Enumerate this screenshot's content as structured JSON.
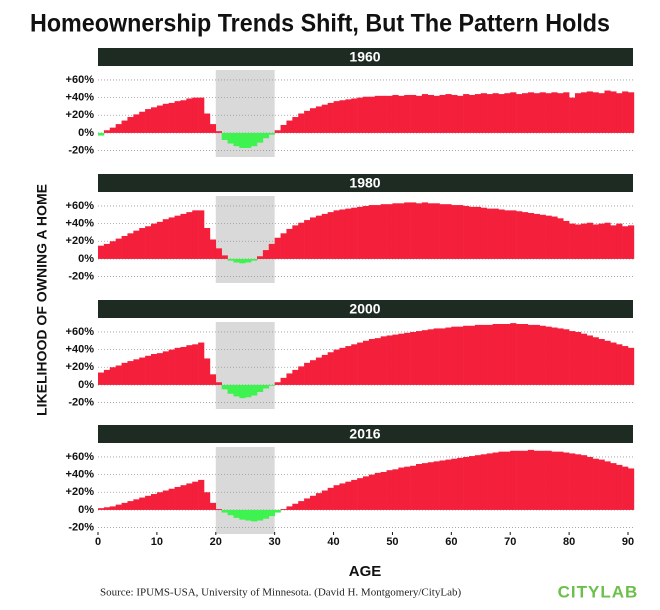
{
  "title": "Homeownership Trends Shift, But The Pattern Holds",
  "y_axis_label": "LIKELIHOOD OF OWNING A HOME",
  "x_axis_label": "AGE",
  "source": "Source: IPUMS-USA, University of Minnesota. (David H. Montgomery/CityLab)",
  "logo": "CITYLAB",
  "chart_data": [
    {
      "type": "bar",
      "title": "1960",
      "x": [
        0,
        1,
        2,
        3,
        4,
        5,
        6,
        7,
        8,
        9,
        10,
        11,
        12,
        13,
        14,
        15,
        16,
        17,
        18,
        19,
        20,
        21,
        22,
        23,
        24,
        25,
        26,
        27,
        28,
        29,
        30,
        31,
        32,
        33,
        34,
        35,
        36,
        37,
        38,
        39,
        40,
        41,
        42,
        43,
        44,
        45,
        46,
        47,
        48,
        49,
        50,
        51,
        52,
        53,
        54,
        55,
        56,
        57,
        58,
        59,
        60,
        61,
        62,
        63,
        64,
        65,
        66,
        67,
        68,
        69,
        70,
        71,
        72,
        73,
        74,
        75,
        76,
        77,
        78,
        79,
        80,
        81,
        82,
        83,
        84,
        85,
        86,
        87,
        88,
        89,
        90
      ],
      "values": [
        -3,
        3,
        6,
        10,
        14,
        18,
        21,
        24,
        27,
        29,
        31,
        33,
        34,
        36,
        37,
        39,
        40,
        40,
        22,
        10,
        2,
        -8,
        -12,
        -15,
        -17,
        -17,
        -15,
        -11,
        -6,
        -2,
        3,
        9,
        14,
        18,
        22,
        25,
        28,
        30,
        32,
        34,
        36,
        37,
        38,
        39,
        40,
        41,
        41,
        42,
        42,
        42,
        43,
        42,
        43,
        43,
        42,
        44,
        43,
        42,
        43,
        44,
        43,
        42,
        44,
        43,
        44,
        45,
        44,
        45,
        44,
        45,
        46,
        44,
        45,
        46,
        45,
        46,
        45,
        46,
        45,
        46,
        40,
        45,
        46,
        47,
        46,
        45,
        48,
        47,
        45,
        47,
        46
      ],
      "xlim": [
        0,
        90
      ],
      "ylim": [
        -25,
        69
      ],
      "yticks": [
        {
          "value": 60,
          "label": "+60%"
        },
        {
          "value": 40,
          "label": "+40%"
        },
        {
          "value": 20,
          "label": "+20%"
        },
        {
          "value": 0,
          "label": "0%"
        },
        {
          "value": -20,
          "label": "-20%"
        }
      ],
      "highlight": [
        20,
        30
      ],
      "grid": true,
      "colors": {
        "positive": "#f41f3b",
        "negative": "#3ef24f",
        "highlight": "#d9d9d9"
      }
    },
    {
      "type": "bar",
      "title": "1980",
      "x": [
        0,
        1,
        2,
        3,
        4,
        5,
        6,
        7,
        8,
        9,
        10,
        11,
        12,
        13,
        14,
        15,
        16,
        17,
        18,
        19,
        20,
        21,
        22,
        23,
        24,
        25,
        26,
        27,
        28,
        29,
        30,
        31,
        32,
        33,
        34,
        35,
        36,
        37,
        38,
        39,
        40,
        41,
        42,
        43,
        44,
        45,
        46,
        47,
        48,
        49,
        50,
        51,
        52,
        53,
        54,
        55,
        56,
        57,
        58,
        59,
        60,
        61,
        62,
        63,
        64,
        65,
        66,
        67,
        68,
        69,
        70,
        71,
        72,
        73,
        74,
        75,
        76,
        77,
        78,
        79,
        80,
        81,
        82,
        83,
        84,
        85,
        86,
        87,
        88,
        89,
        90
      ],
      "values": [
        15,
        17,
        20,
        23,
        26,
        29,
        32,
        35,
        37,
        40,
        42,
        45,
        47,
        49,
        51,
        53,
        55,
        55,
        35,
        22,
        12,
        4,
        -2,
        -4,
        -5,
        -4,
        -2,
        3,
        10,
        17,
        24,
        29,
        34,
        38,
        41,
        44,
        47,
        49,
        51,
        53,
        55,
        56,
        57,
        58,
        59,
        60,
        61,
        61,
        62,
        62,
        63,
        63,
        64,
        64,
        63,
        64,
        63,
        63,
        62,
        62,
        61,
        61,
        60,
        59,
        59,
        58,
        57,
        57,
        56,
        55,
        55,
        54,
        53,
        52,
        51,
        50,
        49,
        48,
        46,
        43,
        40,
        39,
        40,
        41,
        39,
        40,
        41,
        38,
        40,
        37,
        38
      ],
      "xlim": [
        0,
        90
      ],
      "ylim": [
        -25,
        69
      ],
      "yticks": [
        {
          "value": 60,
          "label": "+60%"
        },
        {
          "value": 40,
          "label": "+40%"
        },
        {
          "value": 20,
          "label": "+20%"
        },
        {
          "value": 0,
          "label": "0%"
        },
        {
          "value": -20,
          "label": "-20%"
        }
      ],
      "highlight": [
        20,
        30
      ],
      "grid": true,
      "colors": {
        "positive": "#f41f3b",
        "negative": "#3ef24f",
        "highlight": "#d9d9d9"
      }
    },
    {
      "type": "bar",
      "title": "2000",
      "x": [
        0,
        1,
        2,
        3,
        4,
        5,
        6,
        7,
        8,
        9,
        10,
        11,
        12,
        13,
        14,
        15,
        16,
        17,
        18,
        19,
        20,
        21,
        22,
        23,
        24,
        25,
        26,
        27,
        28,
        29,
        30,
        31,
        32,
        33,
        34,
        35,
        36,
        37,
        38,
        39,
        40,
        41,
        42,
        43,
        44,
        45,
        46,
        47,
        48,
        49,
        50,
        51,
        52,
        53,
        54,
        55,
        56,
        57,
        58,
        59,
        60,
        61,
        62,
        63,
        64,
        65,
        66,
        67,
        68,
        69,
        70,
        71,
        72,
        73,
        74,
        75,
        76,
        77,
        78,
        79,
        80,
        81,
        82,
        83,
        84,
        85,
        86,
        87,
        88,
        89,
        90
      ],
      "values": [
        14,
        17,
        20,
        22,
        25,
        27,
        29,
        31,
        33,
        35,
        36,
        38,
        40,
        42,
        43,
        45,
        46,
        48,
        30,
        12,
        3,
        -5,
        -10,
        -13,
        -15,
        -14,
        -12,
        -8,
        -4,
        -1,
        3,
        8,
        13,
        17,
        21,
        25,
        28,
        31,
        34,
        37,
        40,
        42,
        44,
        46,
        48,
        50,
        52,
        53,
        55,
        56,
        57,
        58,
        59,
        60,
        61,
        62,
        63,
        64,
        64,
        65,
        66,
        66,
        67,
        67,
        68,
        68,
        68,
        69,
        69,
        69,
        70,
        69,
        69,
        68,
        68,
        67,
        66,
        65,
        64,
        63,
        61,
        60,
        58,
        56,
        54,
        52,
        50,
        48,
        46,
        44,
        42
      ],
      "xlim": [
        0,
        90
      ],
      "ylim": [
        -25,
        69
      ],
      "yticks": [
        {
          "value": 60,
          "label": "+60%"
        },
        {
          "value": 40,
          "label": "+40%"
        },
        {
          "value": 20,
          "label": "+20%"
        },
        {
          "value": 0,
          "label": "0%"
        },
        {
          "value": -20,
          "label": "-20%"
        }
      ],
      "highlight": [
        20,
        30
      ],
      "grid": true,
      "colors": {
        "positive": "#f41f3b",
        "negative": "#3ef24f",
        "highlight": "#d9d9d9"
      }
    },
    {
      "type": "bar",
      "title": "2016",
      "x": [
        0,
        1,
        2,
        3,
        4,
        5,
        6,
        7,
        8,
        9,
        10,
        11,
        12,
        13,
        14,
        15,
        16,
        17,
        18,
        19,
        20,
        21,
        22,
        23,
        24,
        25,
        26,
        27,
        28,
        29,
        30,
        31,
        32,
        33,
        34,
        35,
        36,
        37,
        38,
        39,
        40,
        41,
        42,
        43,
        44,
        45,
        46,
        47,
        48,
        49,
        50,
        51,
        52,
        53,
        54,
        55,
        56,
        57,
        58,
        59,
        60,
        61,
        62,
        63,
        64,
        65,
        66,
        67,
        68,
        69,
        70,
        71,
        72,
        73,
        74,
        75,
        76,
        77,
        78,
        79,
        80,
        81,
        82,
        83,
        84,
        85,
        86,
        87,
        88,
        89,
        90
      ],
      "values": [
        2,
        3,
        4,
        6,
        8,
        10,
        12,
        14,
        16,
        18,
        20,
        22,
        24,
        26,
        28,
        30,
        32,
        34,
        20,
        8,
        1,
        -3,
        -6,
        -9,
        -11,
        -12,
        -13,
        -12,
        -10,
        -7,
        -3,
        1,
        4,
        7,
        10,
        13,
        16,
        19,
        22,
        25,
        28,
        30,
        32,
        34,
        36,
        38,
        40,
        42,
        43,
        45,
        46,
        48,
        49,
        50,
        52,
        53,
        54,
        55,
        56,
        57,
        58,
        59,
        60,
        61,
        62,
        63,
        64,
        65,
        66,
        66,
        67,
        67,
        67,
        68,
        67,
        67,
        67,
        66,
        66,
        65,
        64,
        63,
        62,
        60,
        58,
        57,
        55,
        53,
        51,
        49,
        47
      ],
      "xlim": [
        0,
        90
      ],
      "ylim": [
        -25,
        69
      ],
      "xticks": [
        0,
        10,
        20,
        30,
        40,
        50,
        60,
        70,
        80,
        90
      ],
      "yticks": [
        {
          "value": 60,
          "label": "+60%"
        },
        {
          "value": 40,
          "label": "+40%"
        },
        {
          "value": 20,
          "label": "+20%"
        },
        {
          "value": 0,
          "label": "0%"
        },
        {
          "value": -20,
          "label": "-20%"
        }
      ],
      "highlight": [
        20,
        30
      ],
      "grid": true,
      "colors": {
        "positive": "#f41f3b",
        "negative": "#3ef24f",
        "highlight": "#d9d9d9"
      }
    }
  ]
}
